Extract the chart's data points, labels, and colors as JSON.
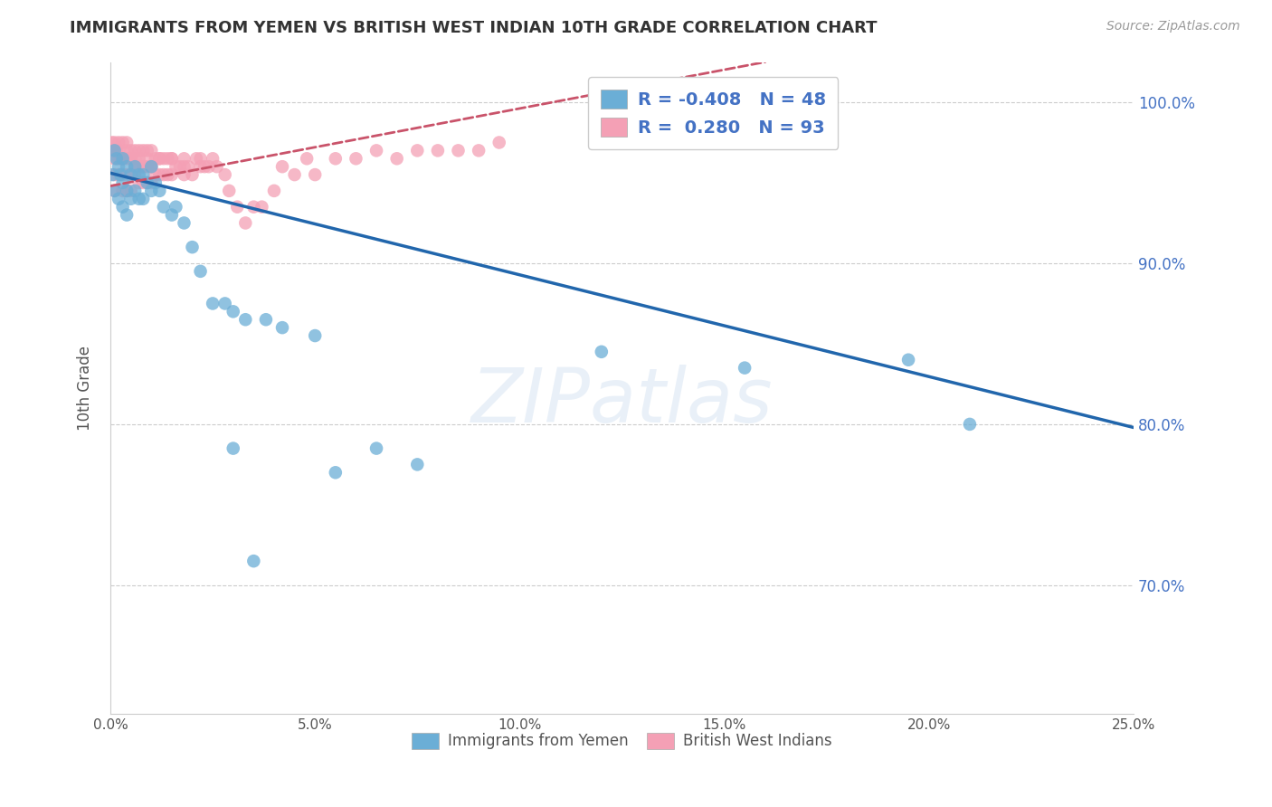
{
  "title": "IMMIGRANTS FROM YEMEN VS BRITISH WEST INDIAN 10TH GRADE CORRELATION CHART",
  "source": "Source: ZipAtlas.com",
  "ylabel": "10th Grade",
  "xlim": [
    0.0,
    0.25
  ],
  "ylim": [
    0.62,
    1.025
  ],
  "xtick_positions": [
    0.0,
    0.05,
    0.1,
    0.15,
    0.2,
    0.25
  ],
  "xtick_labels": [
    "0.0%",
    "5.0%",
    "10.0%",
    "15.0%",
    "20.0%",
    "25.0%"
  ],
  "ytick_positions": [
    0.7,
    0.8,
    0.9,
    1.0
  ],
  "ytick_labels": [
    "70.0%",
    "80.0%",
    "90.0%",
    "100.0%"
  ],
  "legend_blue_r": "-0.408",
  "legend_blue_n": "48",
  "legend_pink_r": "0.280",
  "legend_pink_n": "93",
  "blue_color": "#6baed6",
  "pink_color": "#f4a0b5",
  "blue_line_color": "#2166ac",
  "pink_line_color": "#c9536a",
  "background_color": "#ffffff",
  "watermark": "ZIPatlas",
  "blue_line_x0": 0.0,
  "blue_line_y0": 0.956,
  "blue_line_x1": 0.25,
  "blue_line_y1": 0.798,
  "pink_line_x0": 0.0,
  "pink_line_y0": 0.948,
  "pink_line_x1": 0.16,
  "pink_line_y1": 1.025,
  "blue_scatter_x": [
    0.0005,
    0.001,
    0.001,
    0.0015,
    0.002,
    0.002,
    0.0025,
    0.003,
    0.003,
    0.003,
    0.004,
    0.004,
    0.004,
    0.005,
    0.005,
    0.006,
    0.006,
    0.007,
    0.007,
    0.008,
    0.008,
    0.009,
    0.01,
    0.01,
    0.011,
    0.012,
    0.013,
    0.015,
    0.016,
    0.018,
    0.02,
    0.022,
    0.025,
    0.028,
    0.03,
    0.033,
    0.038,
    0.042,
    0.05,
    0.055,
    0.065,
    0.075,
    0.12,
    0.155,
    0.21,
    0.195,
    0.03,
    0.035
  ],
  "blue_scatter_y": [
    0.955,
    0.97,
    0.945,
    0.965,
    0.96,
    0.94,
    0.955,
    0.965,
    0.95,
    0.935,
    0.96,
    0.945,
    0.93,
    0.955,
    0.94,
    0.96,
    0.945,
    0.955,
    0.94,
    0.955,
    0.94,
    0.95,
    0.96,
    0.945,
    0.95,
    0.945,
    0.935,
    0.93,
    0.935,
    0.925,
    0.91,
    0.895,
    0.875,
    0.875,
    0.87,
    0.865,
    0.865,
    0.86,
    0.855,
    0.77,
    0.785,
    0.775,
    0.845,
    0.835,
    0.8,
    0.84,
    0.785,
    0.715
  ],
  "pink_scatter_x": [
    0.0003,
    0.0005,
    0.001,
    0.001,
    0.001,
    0.001,
    0.0015,
    0.002,
    0.002,
    0.002,
    0.0025,
    0.003,
    0.003,
    0.003,
    0.003,
    0.004,
    0.004,
    0.004,
    0.004,
    0.005,
    0.005,
    0.005,
    0.005,
    0.006,
    0.006,
    0.006,
    0.007,
    0.007,
    0.007,
    0.008,
    0.008,
    0.008,
    0.009,
    0.009,
    0.009,
    0.01,
    0.01,
    0.01,
    0.011,
    0.011,
    0.012,
    0.012,
    0.013,
    0.013,
    0.014,
    0.014,
    0.015,
    0.015,
    0.016,
    0.017,
    0.018,
    0.018,
    0.019,
    0.02,
    0.021,
    0.022,
    0.023,
    0.024,
    0.025,
    0.026,
    0.028,
    0.029,
    0.031,
    0.033,
    0.035,
    0.037,
    0.04,
    0.042,
    0.045,
    0.048,
    0.05,
    0.055,
    0.06,
    0.065,
    0.07,
    0.075,
    0.08,
    0.085,
    0.09,
    0.095,
    0.01,
    0.004,
    0.006,
    0.008,
    0.003,
    0.002,
    0.005,
    0.007,
    0.009,
    0.012,
    0.015,
    0.018,
    0.022
  ],
  "pink_scatter_y": [
    0.975,
    0.97,
    0.975,
    0.965,
    0.955,
    0.945,
    0.97,
    0.975,
    0.965,
    0.955,
    0.965,
    0.975,
    0.965,
    0.955,
    0.945,
    0.975,
    0.965,
    0.955,
    0.945,
    0.97,
    0.965,
    0.955,
    0.945,
    0.97,
    0.965,
    0.955,
    0.97,
    0.96,
    0.95,
    0.97,
    0.96,
    0.95,
    0.97,
    0.96,
    0.95,
    0.97,
    0.96,
    0.95,
    0.965,
    0.955,
    0.965,
    0.955,
    0.965,
    0.955,
    0.965,
    0.955,
    0.965,
    0.955,
    0.96,
    0.96,
    0.96,
    0.955,
    0.96,
    0.955,
    0.965,
    0.96,
    0.96,
    0.96,
    0.965,
    0.96,
    0.955,
    0.945,
    0.935,
    0.925,
    0.935,
    0.935,
    0.945,
    0.96,
    0.955,
    0.965,
    0.955,
    0.965,
    0.965,
    0.97,
    0.965,
    0.97,
    0.97,
    0.97,
    0.97,
    0.975,
    0.96,
    0.97,
    0.96,
    0.96,
    0.965,
    0.97,
    0.965,
    0.965,
    0.965,
    0.965,
    0.965,
    0.965,
    0.965
  ]
}
